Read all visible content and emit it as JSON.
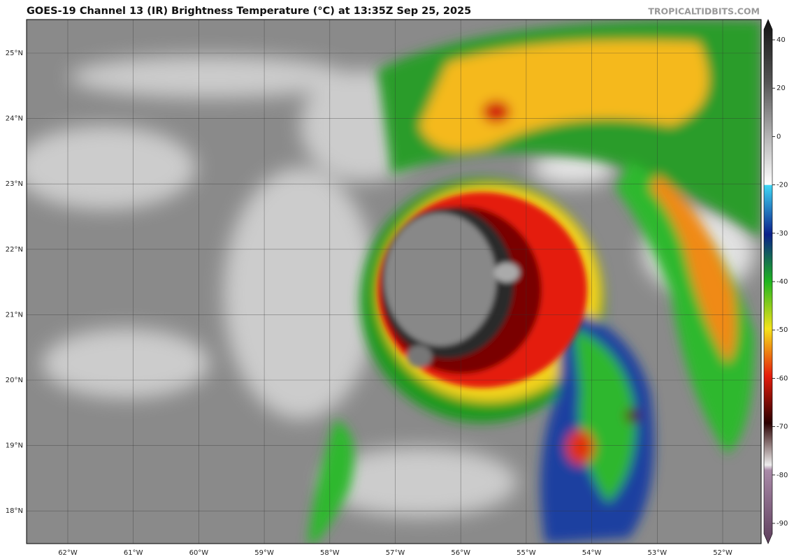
{
  "header": {
    "title": "GOES-19 Channel 13 (IR) Brightness Temperature (°C) at 13:35Z Sep 25, 2025",
    "source": "TROPICALTIDBITS.COM"
  },
  "map": {
    "lat_labels": [
      "25°N",
      "24°N",
      "23°N",
      "22°N",
      "21°N",
      "20°N",
      "19°N",
      "18°N"
    ],
    "lon_labels": [
      "62°W",
      "61°W",
      "60°W",
      "59°W",
      "58°W",
      "57°W",
      "56°W",
      "55°W",
      "54°W",
      "53°W",
      "52°W"
    ]
  },
  "colorbar": {
    "ticks": [
      40,
      20,
      0,
      -20,
      -30,
      -40,
      -50,
      -60,
      -70,
      -80,
      -90
    ]
  }
}
